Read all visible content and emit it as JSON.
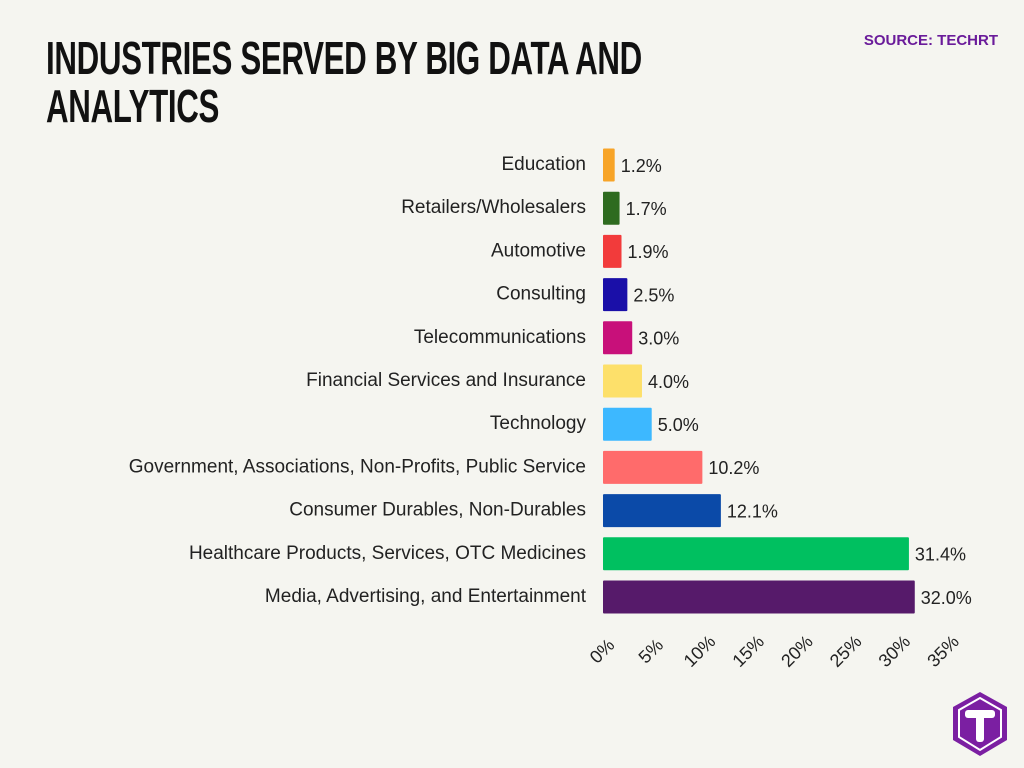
{
  "chart_data": {
    "type": "bar",
    "orientation": "horizontal",
    "title": "INDUSTRIES SERVED BY BIG DATA AND ANALYTICS",
    "source": "SOURCE: TECHRT",
    "categories": [
      "Education",
      "Retailers/Wholesalers",
      "Automotive",
      "Consulting",
      "Telecommunications",
      "Financial Services and Insurance",
      "Technology",
      "Government, Associations, Non-Profits, Public Service",
      "Consumer Durables, Non-Durables",
      "Healthcare Products, Services, OTC Medicines",
      "Media, Advertising, and Entertainment"
    ],
    "values": [
      1.2,
      1.7,
      1.9,
      2.5,
      3.0,
      4.0,
      5.0,
      10.2,
      12.1,
      31.4,
      32.0
    ],
    "value_labels": [
      "1.2%",
      "1.7%",
      "1.9%",
      "2.5%",
      "3.0%",
      "4.0%",
      "5.0%",
      "10.2%",
      "12.1%",
      "31.4%",
      "32.0%"
    ],
    "colors": [
      "#f7a428",
      "#2e6b1f",
      "#f23b3b",
      "#1a0fa8",
      "#c8107a",
      "#fde06a",
      "#3db8ff",
      "#ff6b6b",
      "#0b4aa8",
      "#00c060",
      "#561a6a"
    ],
    "xlim": [
      0,
      35
    ],
    "xticks": [
      {
        "value": 0,
        "label": "0%"
      },
      {
        "value": 5,
        "label": "5%"
      },
      {
        "value": 10,
        "label": "10%"
      },
      {
        "value": 15,
        "label": "15%"
      },
      {
        "value": 20,
        "label": "20%"
      },
      {
        "value": 25,
        "label": "25%"
      },
      {
        "value": 30,
        "label": "30%"
      },
      {
        "value": 35,
        "label": "35%"
      }
    ],
    "grid": false
  }
}
